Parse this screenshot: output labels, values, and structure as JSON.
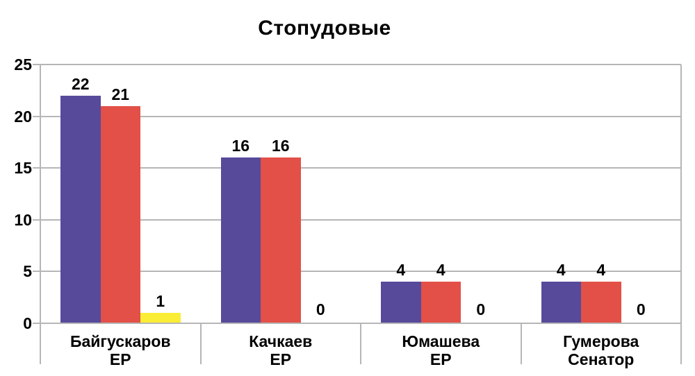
{
  "chart_data": {
    "type": "bar",
    "title": "Стопудовые",
    "categories": [
      [
        "Байгускаров",
        "ЕР"
      ],
      [
        "Качкаев",
        "ЕР"
      ],
      [
        "Юмашева",
        "ЕР"
      ],
      [
        "Гумерова",
        "Сенатор"
      ]
    ],
    "series": [
      {
        "name": "series-1-purple",
        "color": "#574A9A",
        "values": [
          22,
          16,
          4,
          4
        ]
      },
      {
        "name": "series-2-red",
        "color": "#E25048",
        "values": [
          21,
          16,
          4,
          4
        ]
      },
      {
        "name": "series-3-yellow",
        "color": "#F9ED36",
        "values": [
          1,
          0,
          0,
          0
        ]
      }
    ],
    "value_labels": [
      [
        "22",
        "21",
        "1"
      ],
      [
        "16",
        "16",
        "0"
      ],
      [
        "4",
        "4",
        "0"
      ],
      [
        "4",
        "4",
        "0"
      ]
    ],
    "ylabel": "",
    "xlabel": "",
    "ylim": [
      0,
      25
    ],
    "yticks": [
      "0",
      "5",
      "10",
      "15",
      "20",
      "25"
    ],
    "grid": "horizontal",
    "legend": "none",
    "colors": {
      "grid": "#b6b6b6",
      "axis": "#b6b6b6",
      "text": "#000000",
      "background": "#ffffff"
    }
  }
}
